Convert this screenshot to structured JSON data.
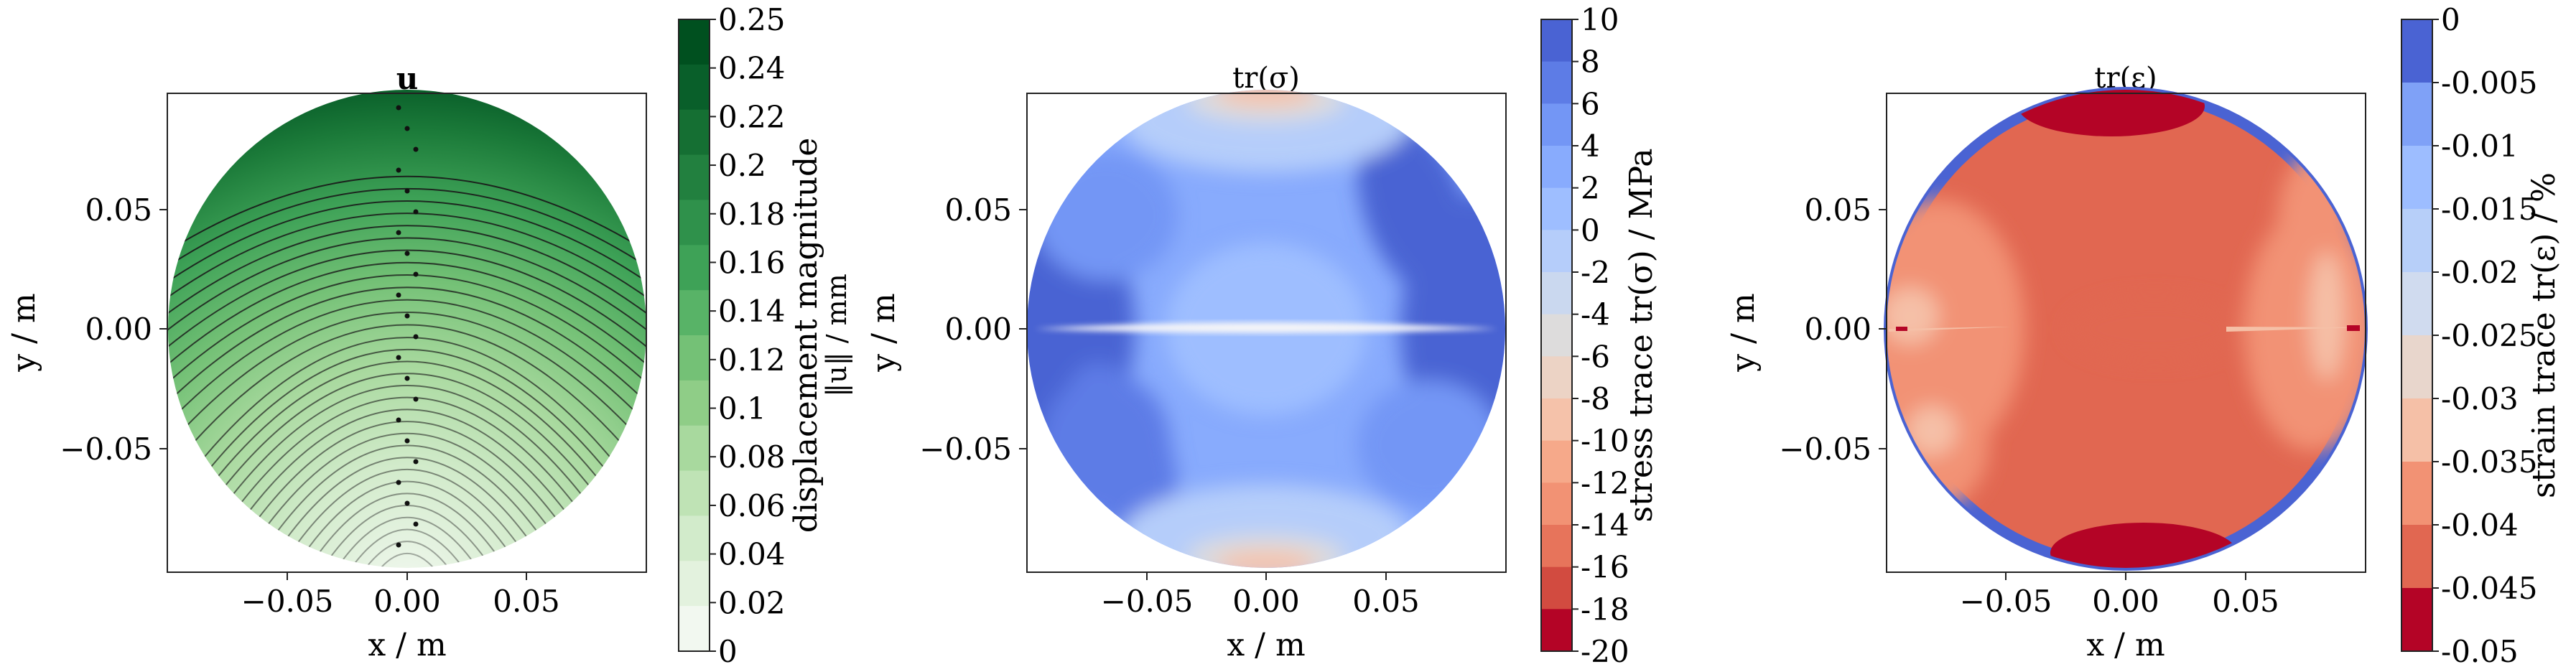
{
  "panels": [
    {
      "id": "displacement",
      "title": "u",
      "title_bold": true,
      "xlabel": "x / m",
      "ylabel": "y / m",
      "xticks": [
        "−0.05",
        "0.00",
        "0.05"
      ],
      "yticks": [
        "0.05",
        "0.00",
        "−0.05"
      ],
      "colorbar": {
        "label_line1": "displacement magnitude",
        "label_line2": "‖u‖ / mm",
        "ticks": [
          "0.25",
          "0.24",
          "0.22",
          "0.2",
          "0.18",
          "0.16",
          "0.14",
          "0.12",
          "0.1",
          "0.08",
          "0.06",
          "0.04",
          "0.02",
          "0"
        ],
        "colors": [
          "#f2f8f0",
          "#e3f2de",
          "#d2ebcb",
          "#bfe3b5",
          "#a8d99e",
          "#8fcd87",
          "#74c176",
          "#58b367",
          "#3ea257",
          "#2f914b",
          "#22803f",
          "#156f33",
          "#095f2a",
          "#00501f"
        ]
      }
    },
    {
      "id": "stress",
      "title": "tr(σ)",
      "xlabel": "x / m",
      "ylabel": "y / m",
      "xticks": [
        "−0.05",
        "0.00",
        "0.05"
      ],
      "yticks": [
        "0.05",
        "0.00",
        "−0.05"
      ],
      "colorbar": {
        "label": "stress trace tr(σ) / MPa",
        "ticks": [
          "10",
          "8",
          "6",
          "4",
          "2",
          "0",
          "-2",
          "-4",
          "-6",
          "-8",
          "-10",
          "-12",
          "-14",
          "-16",
          "-18",
          "-20"
        ],
        "colors": [
          "#b40426",
          "#d24b40",
          "#e7745b",
          "#f29274",
          "#f6a98a",
          "#f5c2aa",
          "#ecd3c5",
          "#dddcdc",
          "#cad8ef",
          "#b5cdfa",
          "#9ebeff",
          "#88abfd",
          "#7396f5",
          "#5d7ce6",
          "#4a63d3"
        ]
      }
    },
    {
      "id": "strain",
      "title": "tr(ε)",
      "xlabel": "x / m",
      "ylabel": "y / m",
      "xticks": [
        "−0.05",
        "0.00",
        "0.05"
      ],
      "yticks": [
        "0.05",
        "0.00",
        "−0.05"
      ],
      "colorbar": {
        "label": "strain trace tr(ε) / %",
        "ticks": [
          "0",
          "-0.005",
          "-0.01",
          "-0.015",
          "-0.02",
          "-0.025",
          "-0.03",
          "-0.035",
          "-0.04",
          "-0.045",
          "-0.05"
        ],
        "colors": [
          "#b40426",
          "#e16751",
          "#f29274",
          "#f5c0a7",
          "#e8d6cc",
          "#d0dbef",
          "#b7cff9",
          "#9dbdff",
          "#7fa1f7",
          "#4a63d3"
        ]
      }
    }
  ],
  "chart_data": [
    {
      "type": "heatmap",
      "title": "u",
      "xlabel": "x / m",
      "ylabel": "y / m",
      "xlim": [
        -0.1,
        0.1
      ],
      "ylim": [
        -0.1,
        0.1
      ],
      "colorbar_range": [
        0,
        0.25
      ],
      "colorbar_label": "displacement magnitude ‖u‖ / mm",
      "colormap": "Greens",
      "overlay": "streamlines"
    },
    {
      "type": "heatmap",
      "title": "tr(σ)",
      "xlabel": "x / m",
      "ylabel": "y / m",
      "xlim": [
        -0.1,
        0.1
      ],
      "ylim": [
        -0.1,
        0.1
      ],
      "colorbar_range": [
        -20,
        10
      ],
      "colorbar_label": "stress trace tr(σ) / MPa",
      "colormap": "coolwarm"
    },
    {
      "type": "heatmap",
      "title": "tr(ε)",
      "xlabel": "x / m",
      "ylabel": "y / m",
      "xlim": [
        -0.1,
        0.1
      ],
      "ylim": [
        -0.1,
        0.1
      ],
      "colorbar_range": [
        -0.05,
        0
      ],
      "colorbar_label": "strain trace tr(ε) / %",
      "colormap": "coolwarm"
    }
  ]
}
